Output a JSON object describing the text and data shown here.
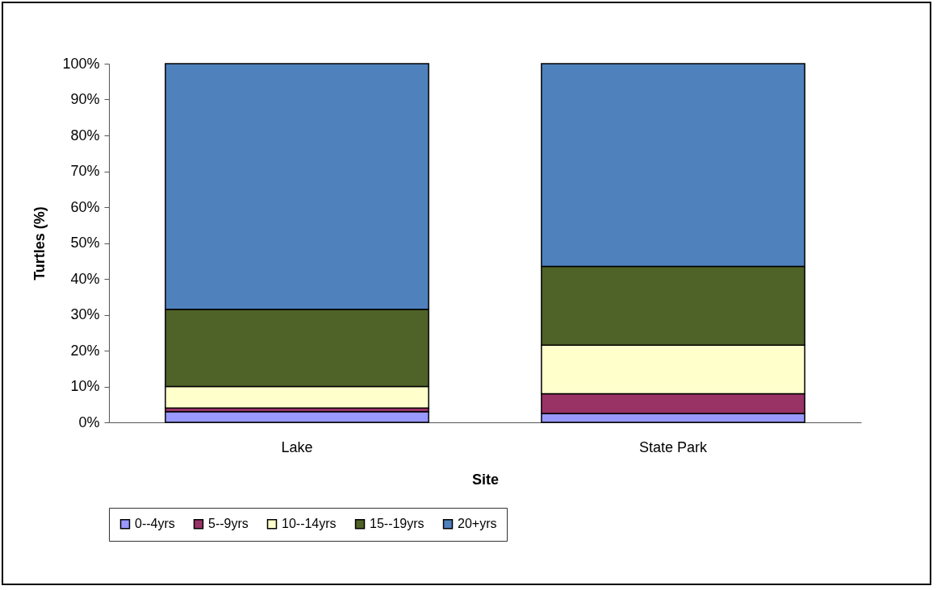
{
  "chart_data": {
    "type": "bar",
    "stacked": true,
    "xlabel": "Site",
    "ylabel": "Turtles (%)",
    "categories": [
      "Lake",
      "State Park"
    ],
    "series": [
      {
        "name": "0--4yrs",
        "color": "#9999ff",
        "values": [
          3,
          2.5
        ]
      },
      {
        "name": "5--9yrs",
        "color": "#993366",
        "values": [
          1,
          5.5
        ]
      },
      {
        "name": "10--14yrs",
        "color": "#ffffcc",
        "values": [
          6,
          13.5
        ]
      },
      {
        "name": "15--19yrs",
        "color": "#4f6228",
        "values": [
          21.5,
          22
        ]
      },
      {
        "name": "20+yrs",
        "color": "#4f81bd",
        "values": [
          68.5,
          56.5
        ]
      }
    ],
    "ylim": [
      0,
      100
    ],
    "yticks": [
      {
        "value": 0,
        "label": "0%"
      },
      {
        "value": 10,
        "label": "10%"
      },
      {
        "value": 20,
        "label": "20%"
      },
      {
        "value": 30,
        "label": "30%"
      },
      {
        "value": 40,
        "label": "40%"
      },
      {
        "value": 50,
        "label": "50%"
      },
      {
        "value": 60,
        "label": "60%"
      },
      {
        "value": 70,
        "label": "70%"
      },
      {
        "value": 80,
        "label": "80%"
      },
      {
        "value": 90,
        "label": "90%"
      },
      {
        "value": 100,
        "label": "100%"
      }
    ],
    "grid": false,
    "legend": "bottom"
  }
}
